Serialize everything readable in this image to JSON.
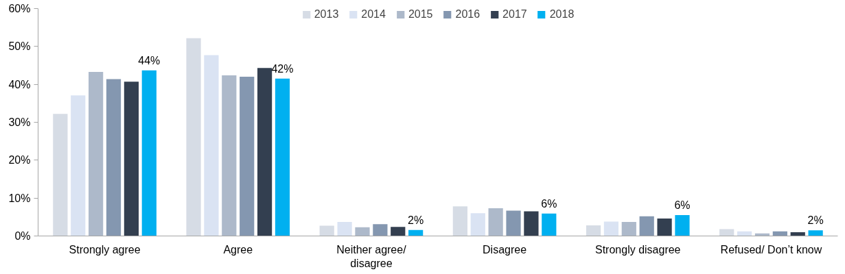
{
  "chart_data": {
    "type": "bar",
    "categories": [
      "Strongly agree",
      "Agree",
      "Neither agree/\ndisagree",
      "Disagree",
      "Strongly disagree",
      "Refused/ Don’t know"
    ],
    "series": [
      {
        "name": "2013",
        "color": "#d6dce5",
        "values": [
          32.2,
          52.2,
          2.7,
          7.8,
          2.8,
          1.8
        ]
      },
      {
        "name": "2014",
        "color": "#dae3f3",
        "values": [
          37.1,
          47.7,
          3.7,
          6.0,
          3.8,
          1.2
        ]
      },
      {
        "name": "2015",
        "color": "#adb9ca",
        "values": [
          43.3,
          42.4,
          2.3,
          7.3,
          3.7,
          0.7
        ]
      },
      {
        "name": "2016",
        "color": "#8497b0",
        "values": [
          41.4,
          42.0,
          3.1,
          6.7,
          5.2,
          1.2
        ]
      },
      {
        "name": "2017",
        "color": "#333f50",
        "values": [
          40.7,
          44.3,
          2.4,
          6.5,
          4.6,
          1.0
        ]
      },
      {
        "name": "2018",
        "color": "#00b0f0",
        "values": [
          43.7,
          41.5,
          1.6,
          5.9,
          5.5,
          1.5
        ],
        "value_labels": [
          "44%",
          "42%",
          "2%",
          "6%",
          "6%",
          "2%"
        ]
      }
    ],
    "ylim": [
      0,
      60
    ],
    "yticks": [
      {
        "value": 0,
        "label": "0%"
      },
      {
        "value": 10,
        "label": "10%"
      },
      {
        "value": 20,
        "label": "20%"
      },
      {
        "value": 30,
        "label": "30%"
      },
      {
        "value": 40,
        "label": "40%"
      },
      {
        "value": 50,
        "label": "50%"
      },
      {
        "value": 60,
        "label": "60%"
      }
    ],
    "legend": "top",
    "grid": false
  }
}
